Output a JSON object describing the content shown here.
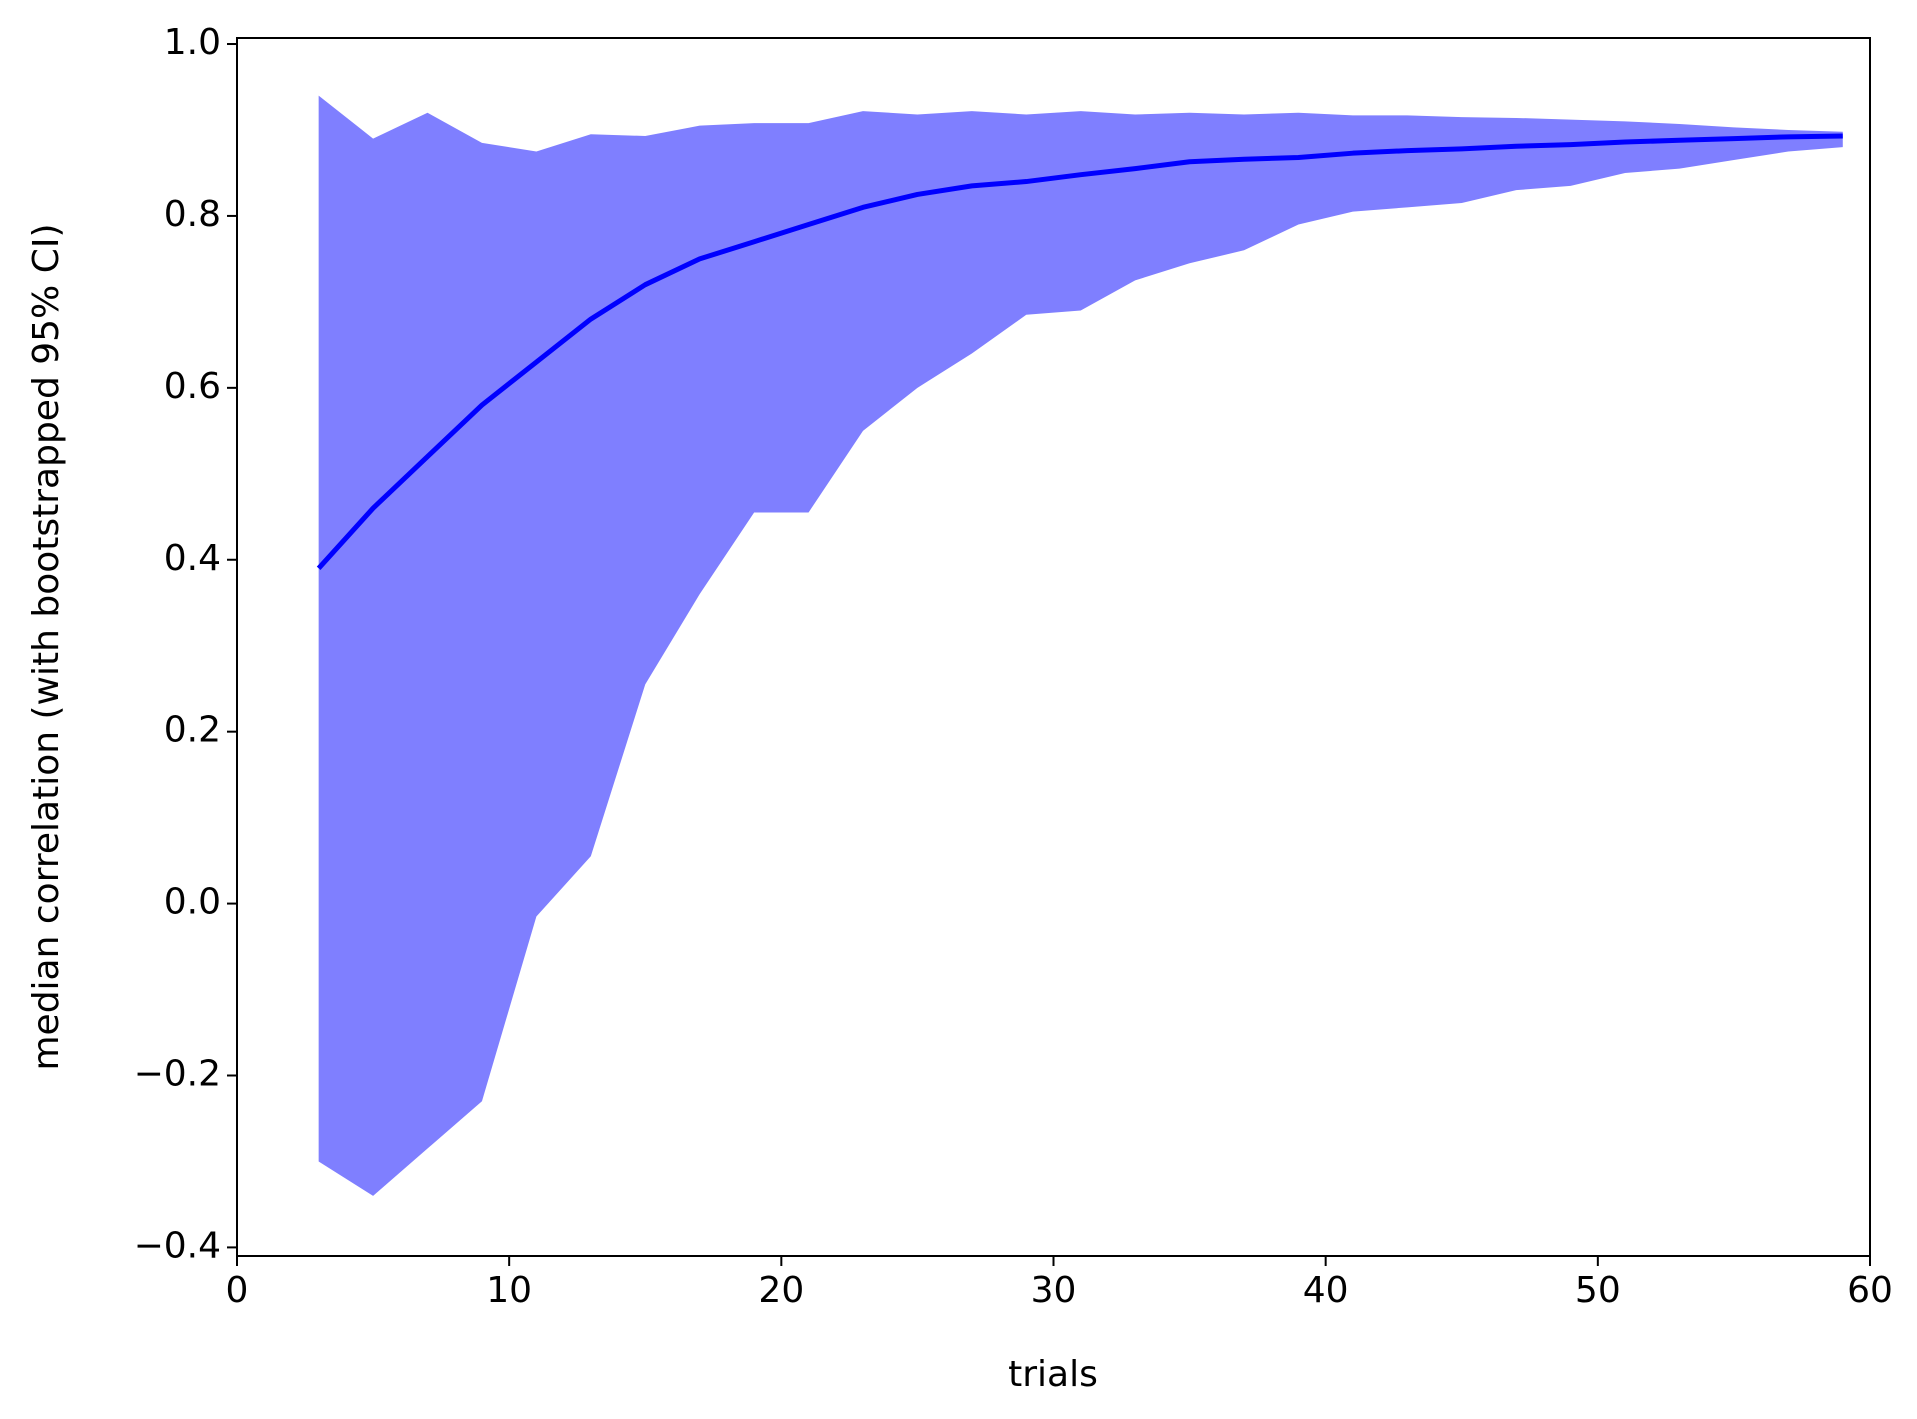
{
  "chart_data": {
    "type": "line_band",
    "xlabel": "trials",
    "ylabel": "median correlation (with bootstrapped 95% CI)",
    "x": [
      3,
      5,
      7,
      9,
      11,
      13,
      15,
      17,
      19,
      21,
      23,
      25,
      27,
      29,
      31,
      33,
      35,
      37,
      39,
      41,
      43,
      45,
      47,
      49,
      51,
      53,
      55,
      57,
      59
    ],
    "series": [
      {
        "color": "#0000ff",
        "values": [
          0.39,
          0.46,
          0.52,
          0.58,
          0.63,
          0.68,
          0.72,
          0.75,
          0.77,
          0.79,
          0.81,
          0.825,
          0.835,
          0.84,
          0.848,
          0.855,
          0.863,
          0.866,
          0.868,
          0.873,
          0.876,
          0.878,
          0.881,
          0.883,
          0.886,
          0.888,
          0.89,
          0.892,
          0.893
        ]
      }
    ],
    "band": {
      "color": "#7f7fff",
      "upper": [
        0.94,
        0.89,
        0.92,
        0.885,
        0.875,
        0.895,
        0.893,
        0.905,
        0.908,
        0.908,
        0.922,
        0.918,
        0.922,
        0.918,
        0.922,
        0.918,
        0.92,
        0.918,
        0.92,
        0.917,
        0.917,
        0.915,
        0.914,
        0.912,
        0.91,
        0.907,
        0.903,
        0.9,
        0.898
      ],
      "lower": [
        -0.3,
        -0.34,
        -0.285,
        -0.23,
        -0.015,
        0.055,
        0.255,
        0.36,
        0.455,
        0.455,
        0.55,
        0.6,
        0.64,
        0.685,
        0.69,
        0.725,
        0.745,
        0.76,
        0.79,
        0.805,
        0.81,
        0.815,
        0.83,
        0.835,
        0.85,
        0.855,
        0.865,
        0.875,
        0.88
      ]
    },
    "xlim": [
      0,
      60
    ],
    "xticks": [
      0,
      10,
      20,
      30,
      40,
      50,
      60
    ],
    "ylim": [
      -0.41,
      1.007
    ],
    "yticks": [
      {
        "value": -0.4,
        "label": "−0.4"
      },
      {
        "value": -0.2,
        "label": "−0.2"
      },
      {
        "value": 0,
        "label": "0.0"
      },
      0.2,
      0.4,
      0.6,
      0.8,
      {
        "value": 1,
        "label": "1.0"
      }
    ]
  }
}
